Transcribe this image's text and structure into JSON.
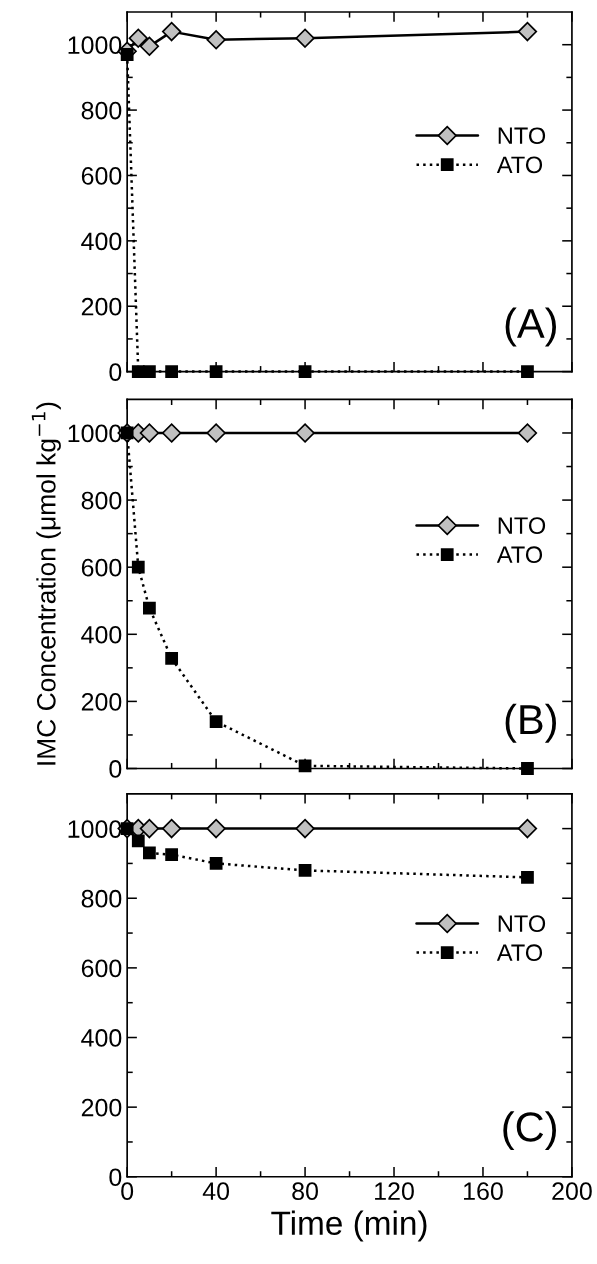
{
  "chart_data": [
    {
      "type": "line",
      "x": [
        0,
        5,
        10,
        20,
        40,
        80,
        180
      ],
      "xlim": [
        0,
        200
      ],
      "xticks": [
        0,
        40,
        80,
        120,
        160,
        200
      ],
      "ylim": [
        0,
        1100
      ],
      "yticks": [
        0,
        200,
        400,
        600,
        800,
        1000
      ],
      "tick_labels": "y",
      "legend": "top right",
      "annotations": [
        "(A)"
      ],
      "series": [
        {
          "name": "NTO",
          "color": "#c0c0c0",
          "marker": "diamond",
          "line_style": "solid",
          "values": [
            980,
            1020,
            995,
            1040,
            1015,
            1020,
            1040
          ]
        },
        {
          "name": "ATO",
          "color": "#000000",
          "marker": "square",
          "line_style": "dotted",
          "values": [
            970,
            0,
            0,
            0,
            0,
            0,
            0
          ]
        }
      ]
    },
    {
      "type": "line",
      "x": [
        0,
        5,
        10,
        20,
        40,
        80,
        180
      ],
      "xlim": [
        0,
        200
      ],
      "xticks": [
        0,
        40,
        80,
        120,
        160,
        200
      ],
      "ylim": [
        0,
        1100
      ],
      "yticks": [
        0,
        200,
        400,
        600,
        800,
        1000
      ],
      "tick_labels": "y",
      "legend": "top right",
      "annotations": [
        "(B)"
      ],
      "ylabel": "IMC Concentration (μmol kg$^{−1}$)",
      "series": [
        {
          "name": "NTO",
          "color": "#c0c0c0",
          "marker": "diamond",
          "line_style": "solid",
          "values": [
            1000,
            1000,
            1000,
            1000,
            1000,
            1000,
            1000
          ]
        },
        {
          "name": "ATO",
          "color": "#000000",
          "marker": "square",
          "line_style": "dotted",
          "values": [
            1000,
            600,
            478,
            328,
            140,
            8,
            0
          ]
        }
      ]
    },
    {
      "type": "line",
      "x": [
        0,
        5,
        10,
        20,
        40,
        80,
        180
      ],
      "xlim": [
        0,
        200
      ],
      "xticks": [
        0,
        40,
        80,
        120,
        160,
        200
      ],
      "ylim": [
        0,
        1100
      ],
      "yticks": [
        0,
        200,
        400,
        600,
        800,
        1000
      ],
      "legend": "top right",
      "annotations": [
        "(C)"
      ],
      "xlabel": "Time (min)",
      "series": [
        {
          "name": "NTO",
          "color": "#c0c0c0",
          "marker": "diamond",
          "line_style": "solid",
          "values": [
            1000,
            1000,
            1000,
            1000,
            1000,
            1000,
            1000
          ]
        },
        {
          "name": "ATO",
          "color": "#000000",
          "marker": "square",
          "line_style": "dotted",
          "values": [
            1000,
            965,
            930,
            925,
            900,
            880,
            860
          ]
        }
      ]
    }
  ]
}
